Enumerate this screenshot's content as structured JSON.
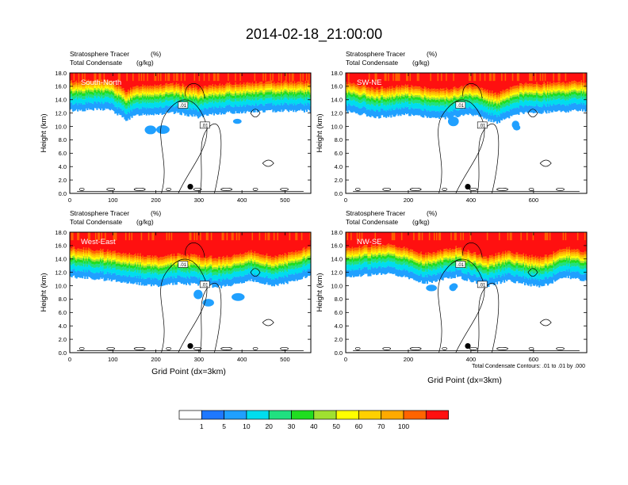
{
  "title": "2014-02-18_21:00:00",
  "panel_header": {
    "line1_name": "Stratosphere Tracer",
    "line1_unit": "(%)",
    "line2_name": "Total Condensate",
    "line2_unit": "(g/kg)"
  },
  "ylabel": "Height (km)",
  "xlabel": "Grid Point (dx=3km)",
  "contour_note": "Total Condensate Contours: .01 to .01 by .000",
  "contour_label": ".01",
  "colorbar": {
    "labels": [
      "1",
      "5",
      "10",
      "20",
      "30",
      "40",
      "50",
      "60",
      "70",
      "100"
    ],
    "colors": [
      "#ffffff",
      "#1e78ff",
      "#20a0ff",
      "#00ddee",
      "#20e080",
      "#20dd20",
      "#a0e030",
      "#ffff00",
      "#ffd000",
      "#ffaa00",
      "#ff6400",
      "#ff1010"
    ]
  },
  "chart_data": [
    {
      "type": "heatmap",
      "name": "South-North",
      "xlim": [
        0,
        560
      ],
      "ylim": [
        0,
        18
      ],
      "xticks": [
        0,
        100,
        200,
        300,
        400,
        500
      ],
      "yticks": [
        "0.0",
        "2.0",
        "4.0",
        "6.0",
        "8.0",
        "10.0",
        "12.0",
        "14.0",
        "16.0",
        "18.0"
      ],
      "marker_x": 280,
      "tropopause": [
        [
          0,
          15.6
        ],
        [
          90,
          15.8
        ],
        [
          130,
          14.2
        ],
        [
          160,
          15.0
        ],
        [
          250,
          15.2
        ],
        [
          300,
          14.6
        ],
        [
          350,
          15.2
        ],
        [
          420,
          15.4
        ],
        [
          500,
          15.6
        ],
        [
          560,
          15.5
        ]
      ]
    },
    {
      "type": "heatmap",
      "name": "SW-NE",
      "xlim": [
        0,
        770
      ],
      "ylim": [
        0,
        18
      ],
      "xticks": [
        0,
        200,
        400,
        600
      ],
      "yticks": [
        "0.0",
        "2.0",
        "4.0",
        "6.0",
        "8.0",
        "10.0",
        "12.0",
        "14.0",
        "16.0",
        "18.0"
      ],
      "marker_x": 390,
      "tropopause": [
        [
          0,
          15.5
        ],
        [
          100,
          14.6
        ],
        [
          200,
          15.0
        ],
        [
          300,
          14.4
        ],
        [
          400,
          15.0
        ],
        [
          480,
          13.8
        ],
        [
          560,
          15.2
        ],
        [
          680,
          15.4
        ],
        [
          770,
          15.6
        ]
      ]
    },
    {
      "type": "heatmap",
      "name": "West-East",
      "xlim": [
        0,
        560
      ],
      "ylim": [
        0,
        18
      ],
      "xticks": [
        0,
        100,
        200,
        300,
        400,
        500
      ],
      "yticks": [
        "0.0",
        "2.0",
        "4.0",
        "6.0",
        "8.0",
        "10.0",
        "12.0",
        "14.0",
        "16.0",
        "18.0"
      ],
      "marker_x": 280,
      "tropopause": [
        [
          0,
          14.6
        ],
        [
          100,
          14.0
        ],
        [
          200,
          13.2
        ],
        [
          260,
          13.6
        ],
        [
          350,
          13.0
        ],
        [
          420,
          14.0
        ],
        [
          480,
          13.2
        ],
        [
          560,
          14.8
        ]
      ]
    },
    {
      "type": "heatmap",
      "name": "NW-SE",
      "xlim": [
        0,
        770
      ],
      "ylim": [
        0,
        18
      ],
      "xticks": [
        0,
        200,
        400,
        600
      ],
      "yticks": [
        "0.0",
        "2.0",
        "4.0",
        "6.0",
        "8.0",
        "10.0",
        "12.0",
        "14.0",
        "16.0",
        "18.0"
      ],
      "marker_x": 390,
      "tropopause": [
        [
          0,
          14.6
        ],
        [
          150,
          15.0
        ],
        [
          250,
          13.6
        ],
        [
          350,
          14.6
        ],
        [
          450,
          13.2
        ],
        [
          520,
          14.0
        ],
        [
          620,
          13.0
        ],
        [
          700,
          14.6
        ],
        [
          770,
          13.8
        ]
      ]
    }
  ]
}
